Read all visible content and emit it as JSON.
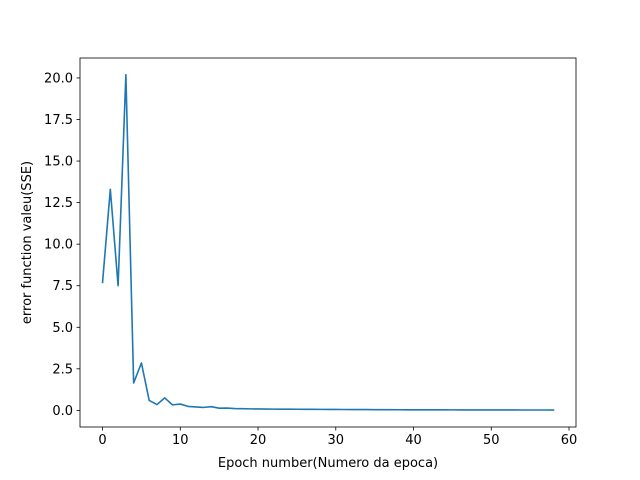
{
  "chart_data": {
    "type": "line",
    "title": "",
    "xlabel": "Epoch number(Numero da epoca)",
    "ylabel": "error function valeu(SSE)",
    "xlim": [
      -2.9,
      60.9
    ],
    "ylim": [
      -1.0,
      21.2
    ],
    "xticks": [
      0,
      10,
      20,
      30,
      40,
      50,
      60
    ],
    "yticks": [
      0.0,
      2.5,
      5.0,
      7.5,
      10.0,
      12.5,
      15.0,
      17.5,
      20.0
    ],
    "xtick_labels": [
      "0",
      "10",
      "20",
      "30",
      "40",
      "50",
      "60"
    ],
    "ytick_labels": [
      "0.0",
      "2.5",
      "5.0",
      "7.5",
      "10.0",
      "12.5",
      "15.0",
      "17.5",
      "20.0"
    ],
    "grid": false,
    "legend": "none",
    "series": [
      {
        "color": "#1f77b4",
        "x": [
          0,
          1,
          2,
          3,
          4,
          5,
          6,
          7,
          8,
          9,
          10,
          11,
          12,
          13,
          14,
          15,
          16,
          17,
          18,
          19,
          20,
          21,
          22,
          23,
          24,
          25,
          26,
          27,
          28,
          29,
          30,
          31,
          32,
          33,
          34,
          35,
          36,
          37,
          38,
          39,
          40,
          41,
          42,
          43,
          44,
          45,
          46,
          47,
          48,
          49,
          50,
          51,
          52,
          53,
          54,
          55,
          56,
          57,
          58
        ],
        "y": [
          7.7,
          13.3,
          7.5,
          20.2,
          1.65,
          2.85,
          0.6,
          0.35,
          0.75,
          0.33,
          0.38,
          0.24,
          0.21,
          0.18,
          0.22,
          0.13,
          0.14,
          0.11,
          0.1,
          0.09,
          0.085,
          0.08,
          0.075,
          0.072,
          0.07,
          0.068,
          0.065,
          0.062,
          0.06,
          0.058,
          0.055,
          0.052,
          0.05,
          0.048,
          0.046,
          0.044,
          0.042,
          0.04,
          0.038,
          0.036,
          0.035,
          0.034,
          0.033,
          0.032,
          0.031,
          0.03,
          0.029,
          0.028,
          0.027,
          0.026,
          0.025,
          0.025,
          0.024,
          0.024,
          0.023,
          0.023,
          0.022,
          0.022,
          0.021
        ]
      }
    ]
  }
}
